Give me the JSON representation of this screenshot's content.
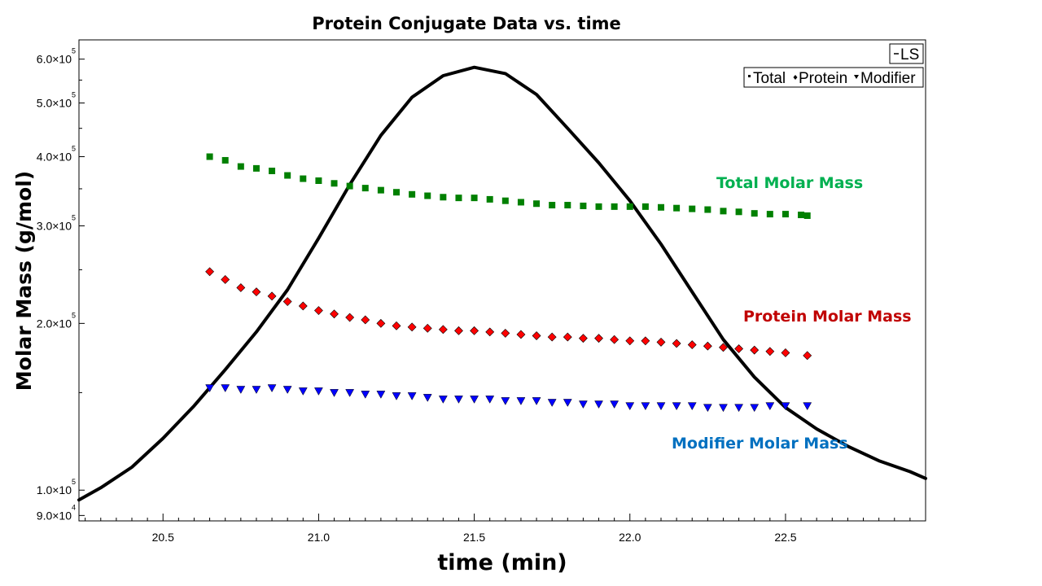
{
  "chart_data": {
    "type": "scatter",
    "title": "Protein Conjugate Data vs. time",
    "xlabel": "time (min)",
    "ylabel": "Molar Mass (g/mol)",
    "xlim": [
      20.23,
      22.95
    ],
    "ylim": [
      88000,
      650000
    ],
    "yscale": "log",
    "grid": false,
    "x_ticks": [
      {
        "value": 20.5,
        "label": "20.5"
      },
      {
        "value": 21.0,
        "label": "21.0"
      },
      {
        "value": 21.5,
        "label": "21.5"
      },
      {
        "value": 22.0,
        "label": "22.0"
      },
      {
        "value": 22.5,
        "label": "22.5"
      }
    ],
    "y_ticks": [
      {
        "value": 90000,
        "mantissa": "9.0×10",
        "exp": "4"
      },
      {
        "value": 100000,
        "mantissa": "1.0×10",
        "exp": "5"
      },
      {
        "value": 200000,
        "mantissa": "2.0×10",
        "exp": "5"
      },
      {
        "value": 300000,
        "mantissa": "3.0×10",
        "exp": "5"
      },
      {
        "value": 400000,
        "mantissa": "4.0×10",
        "exp": "5"
      },
      {
        "value": 500000,
        "mantissa": "5.0×10",
        "exp": "5"
      },
      {
        "value": 600000,
        "mantissa": "6.0×10",
        "exp": "5"
      }
    ],
    "legend": {
      "placement": "top-right",
      "box1": [
        "LS"
      ],
      "box2": [
        "Total",
        "Protein",
        "Modifier"
      ]
    },
    "annotations": {
      "total": "Total Molar Mass",
      "protein": "Protein Molar Mass",
      "modifier": "Modifier Molar Mass"
    },
    "colors": {
      "ls": "#000000",
      "total": "#008000",
      "protein": "#ff0000",
      "modifier": "#0000ff",
      "total_label": "#00b050",
      "protein_label": "#c00000",
      "modifier_label": "#0070c0"
    },
    "series": [
      {
        "name": "LS",
        "kind": "line",
        "x": [
          20.23,
          20.3,
          20.4,
          20.5,
          20.6,
          20.7,
          20.8,
          20.9,
          21.0,
          21.1,
          21.2,
          21.3,
          21.4,
          21.5,
          21.6,
          21.7,
          21.8,
          21.9,
          22.0,
          22.1,
          22.2,
          22.3,
          22.4,
          22.5,
          22.6,
          22.7,
          22.8,
          22.9,
          22.95
        ],
        "y": [
          96000,
          101000,
          110000,
          124000,
          142000,
          165000,
          193000,
          230000,
          285000,
          356000,
          437000,
          512000,
          560000,
          580000,
          565000,
          518000,
          450000,
          390000,
          333000,
          278000,
          228000,
          187000,
          160000,
          141000,
          129000,
          120000,
          113000,
          108000,
          105000
        ]
      },
      {
        "name": "Total",
        "kind": "marker",
        "marker": "square",
        "x": [
          20.65,
          20.7,
          20.75,
          20.8,
          20.85,
          20.9,
          20.95,
          21.0,
          21.05,
          21.1,
          21.15,
          21.2,
          21.25,
          21.3,
          21.35,
          21.4,
          21.45,
          21.5,
          21.55,
          21.6,
          21.65,
          21.7,
          21.75,
          21.8,
          21.85,
          21.9,
          21.95,
          22.0,
          22.05,
          22.1,
          22.15,
          22.2,
          22.25,
          22.3,
          22.35,
          22.4,
          22.45,
          22.5,
          22.55,
          22.57
        ],
        "y": [
          400000,
          394000,
          384000,
          381000,
          377000,
          370000,
          365000,
          362000,
          358000,
          354000,
          351000,
          348000,
          345000,
          342000,
          340000,
          338000,
          337000,
          337000,
          335000,
          333000,
          331000,
          329000,
          327000,
          327000,
          326000,
          325000,
          325000,
          325000,
          325000,
          324000,
          323000,
          322000,
          321000,
          319000,
          318000,
          316000,
          315000,
          315000,
          314000,
          313000
        ]
      },
      {
        "name": "Protein",
        "kind": "marker",
        "marker": "diamond",
        "x": [
          20.65,
          20.7,
          20.75,
          20.8,
          20.85,
          20.9,
          20.95,
          21.0,
          21.05,
          21.1,
          21.15,
          21.2,
          21.25,
          21.3,
          21.35,
          21.4,
          21.45,
          21.5,
          21.55,
          21.6,
          21.65,
          21.7,
          21.75,
          21.8,
          21.85,
          21.9,
          21.95,
          22.0,
          22.05,
          22.1,
          22.15,
          22.2,
          22.25,
          22.3,
          22.35,
          22.4,
          22.45,
          22.5,
          22.57
        ],
        "y": [
          248000,
          240000,
          232000,
          228000,
          224000,
          219000,
          215000,
          211000,
          208000,
          205000,
          203000,
          200000,
          198000,
          197000,
          196000,
          195000,
          194000,
          194000,
          193000,
          192000,
          191000,
          190000,
          189000,
          189000,
          188000,
          188000,
          187000,
          186000,
          186000,
          185000,
          184000,
          183000,
          182000,
          181000,
          180000,
          179000,
          178000,
          177000,
          175000
        ]
      },
      {
        "name": "Modifier",
        "kind": "marker",
        "marker": "triangle-down",
        "x": [
          20.65,
          20.7,
          20.75,
          20.8,
          20.85,
          20.9,
          20.95,
          21.0,
          21.05,
          21.1,
          21.15,
          21.2,
          21.25,
          21.3,
          21.35,
          21.4,
          21.45,
          21.5,
          21.55,
          21.6,
          21.65,
          21.7,
          21.75,
          21.8,
          21.85,
          21.9,
          21.95,
          22.0,
          22.05,
          22.1,
          22.15,
          22.2,
          22.25,
          22.3,
          22.35,
          22.4,
          22.45,
          22.5,
          22.57
        ],
        "y": [
          153000,
          153000,
          152000,
          152000,
          153000,
          152000,
          151000,
          151000,
          150000,
          150000,
          149000,
          149000,
          148000,
          148000,
          147000,
          146000,
          146000,
          146000,
          146000,
          145000,
          145000,
          145000,
          144000,
          144000,
          143000,
          143000,
          143000,
          142000,
          142000,
          142000,
          142000,
          142000,
          141000,
          141000,
          141000,
          141000,
          142000,
          142000,
          142000
        ]
      }
    ]
  }
}
